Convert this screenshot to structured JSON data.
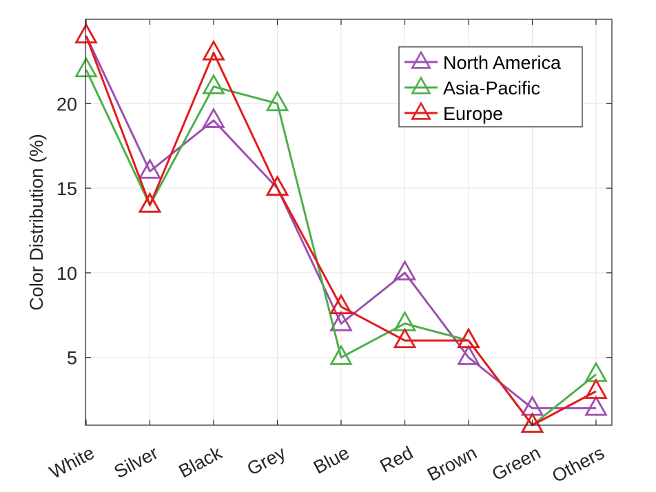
{
  "chart_data": {
    "type": "line",
    "categories": [
      "White",
      "Silver",
      "Black",
      "Grey",
      "Blue",
      "Red",
      "Brown",
      "Green",
      "Others"
    ],
    "series": [
      {
        "name": "North America",
        "color": "#9b4fb0",
        "values": [
          24,
          16,
          19,
          15,
          7,
          10,
          5,
          2,
          2
        ]
      },
      {
        "name": "Asia-Pacific",
        "color": "#4daf4a",
        "values": [
          22,
          14,
          21,
          20,
          5,
          7,
          6,
          1,
          4
        ]
      },
      {
        "name": "Europe",
        "color": "#e41a1c",
        "values": [
          24,
          14,
          23,
          15,
          8,
          6,
          6,
          1,
          3
        ]
      }
    ],
    "ylabel": "Color Distribution (%)",
    "xlabel": "",
    "title": "",
    "ylim": [
      1,
      24
    ],
    "yticks": [
      "5",
      "10",
      "15",
      "20"
    ],
    "marker": "triangle-open",
    "grid": true,
    "legend_position": "top-right"
  }
}
